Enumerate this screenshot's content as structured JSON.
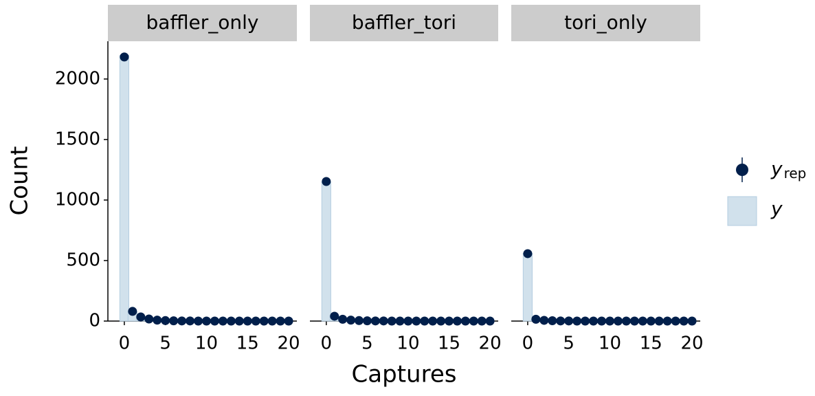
{
  "chart_data": {
    "type": "bar",
    "ylabel": "Count",
    "xlabel": "Captures",
    "x": [
      0,
      1,
      2,
      3,
      4,
      5,
      6,
      7,
      8,
      9,
      10,
      11,
      12,
      13,
      14,
      15,
      16,
      17,
      18,
      19,
      20
    ],
    "xlim": [
      -2,
      21
    ],
    "xticks": [
      0,
      5,
      10,
      15,
      20
    ],
    "ylim": [
      0,
      2312
    ],
    "yticks": [
      0,
      500,
      1000,
      1500,
      2000
    ],
    "series": [
      {
        "name": "y",
        "sub": "rep",
        "color": "#011f4b",
        "marker": "point"
      },
      {
        "name": "y",
        "color": "#d1e1ec",
        "marker": "bar"
      }
    ],
    "facets": [
      {
        "title": "baffler_only",
        "series": [
          {
            "values": [
              2182,
              80,
              34,
              17,
              8,
              4,
              2,
              1,
              1,
              0,
              0,
              0,
              0,
              0,
              0,
              0,
              0,
              0,
              0,
              0,
              0
            ]
          },
          {
            "values": [
              2195,
              78,
              35,
              16,
              9,
              5,
              3,
              2,
              1,
              1,
              0,
              0,
              0,
              0,
              0,
              0,
              0,
              0,
              0,
              0,
              0
            ]
          }
        ]
      },
      {
        "title": "baffler_tori",
        "series": [
          {
            "values": [
              1153,
              40,
              15,
              8,
              4,
              2,
              1,
              1,
              0,
              0,
              0,
              0,
              0,
              0,
              0,
              0,
              0,
              0,
              0,
              0,
              0
            ]
          },
          {
            "values": [
              1150,
              42,
              14,
              7,
              4,
              2,
              1,
              0,
              0,
              0,
              0,
              0,
              0,
              0,
              0,
              0,
              0,
              0,
              0,
              0,
              0
            ]
          }
        ]
      },
      {
        "title": "tori_only",
        "series": [
          {
            "values": [
              557,
              15,
              6,
              3,
              1,
              1,
              0,
              0,
              0,
              0,
              0,
              0,
              0,
              0,
              0,
              0,
              0,
              0,
              0,
              0,
              0
            ]
          },
          {
            "values": [
              560,
              14,
              6,
              3,
              1,
              0,
              0,
              0,
              0,
              0,
              0,
              0,
              0,
              0,
              0,
              0,
              0,
              0,
              0,
              0,
              0
            ]
          }
        ]
      }
    ]
  }
}
